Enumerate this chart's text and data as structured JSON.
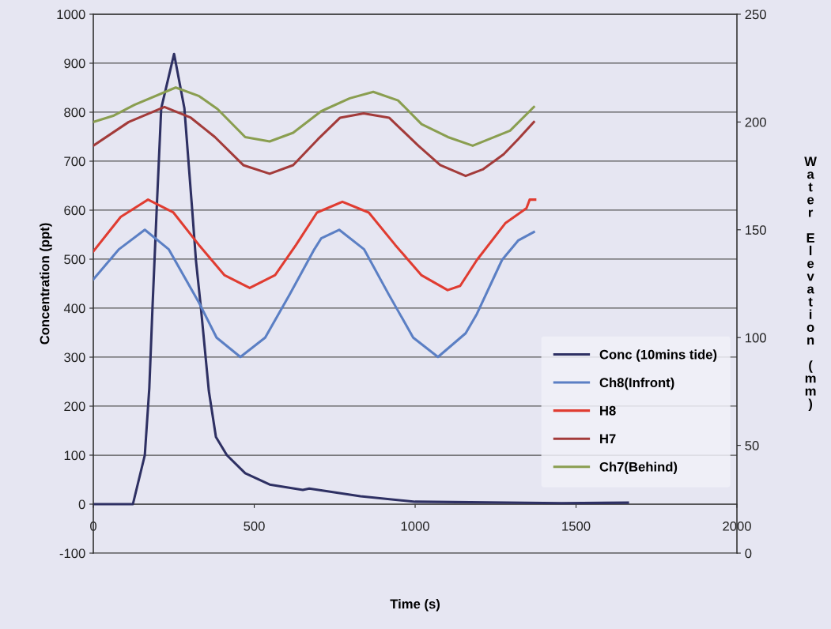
{
  "chart_data": {
    "type": "line",
    "xlabel": "Time (s)",
    "ylabel": "Concentration (ppt)",
    "y2label": "Water Elevation (mm)",
    "xlim": [
      0,
      2000
    ],
    "xticks": [
      0,
      500,
      1000,
      1500,
      2000
    ],
    "ylim": [
      -100,
      1000
    ],
    "yticks": [
      -100,
      0,
      100,
      200,
      300,
      400,
      500,
      600,
      700,
      800,
      900,
      1000
    ],
    "y2lim": [
      0,
      250
    ],
    "y2ticks": [
      0,
      50,
      100,
      150,
      200,
      250
    ],
    "grid": "y",
    "legend": "bottom right",
    "marker": "none",
    "line_style": "solid",
    "series": [
      {
        "name": "Conc (10mins tide)",
        "color": "#2e3063",
        "x": [
          0,
          123,
          160,
          174,
          184,
          197,
          211,
          251,
          283,
          307,
          319,
          334,
          359,
          381,
          415,
          472,
          548,
          651,
          671,
          830,
          1000,
          1455,
          1661
        ],
        "values": [
          0,
          0,
          100,
          237,
          403,
          603,
          808,
          919,
          808,
          603,
          497,
          403,
          231,
          137,
          100,
          63,
          40,
          29,
          32,
          16,
          5,
          2,
          3
        ]
      },
      {
        "name": "Ch8(Infront)",
        "color": "#5b7fc4",
        "axis": "y2",
        "x": [
          0,
          80,
          160,
          234,
          329,
          383,
          457,
          534,
          610,
          687,
          708,
          764,
          841,
          918,
          994,
          1071,
          1157,
          1192,
          1270,
          1320,
          1369
        ],
        "values": [
          127,
          141,
          150,
          141,
          116,
          100,
          91,
          100,
          120,
          141,
          146,
          150,
          141,
          120,
          100,
          91,
          102,
          111,
          136,
          145,
          149
        ]
      },
      {
        "name": "H8",
        "color": "#e03c31",
        "axis": "y2",
        "x": [
          0,
          85,
          170,
          249,
          328,
          407,
          486,
          565,
          630,
          695,
          774,
          856,
          938,
          1019,
          1101,
          1140,
          1192,
          1280,
          1346,
          1356,
          1373
        ],
        "values": [
          140,
          156,
          164,
          158,
          143,
          129,
          123,
          129,
          143,
          158,
          163,
          158,
          143,
          129,
          122,
          124,
          136,
          153,
          160,
          164,
          164
        ]
      },
      {
        "name": "H7",
        "color": "#a33b3a",
        "axis": "y2",
        "x": [
          0,
          110,
          221,
          303,
          378,
          466,
          548,
          621,
          698,
          767,
          840,
          919,
          1010,
          1078,
          1157,
          1210,
          1275,
          1320,
          1369
        ],
        "values": [
          189,
          200,
          207,
          202,
          193,
          180,
          176,
          180,
          192,
          202,
          204,
          202,
          189,
          180,
          175,
          178,
          185,
          192,
          200
        ]
      },
      {
        "name": "Ch7(Behind)",
        "color": "#8a9e50",
        "axis": "y2",
        "x": [
          0,
          64,
          128,
          256,
          329,
          386,
          472,
          548,
          621,
          708,
          797,
          870,
          947,
          1020,
          1102,
          1179,
          1295,
          1369
        ],
        "values": [
          200,
          203,
          208,
          216,
          212,
          206,
          193,
          191,
          195,
          205,
          211,
          214,
          210,
          199,
          193,
          189,
          196,
          207
        ]
      }
    ]
  }
}
